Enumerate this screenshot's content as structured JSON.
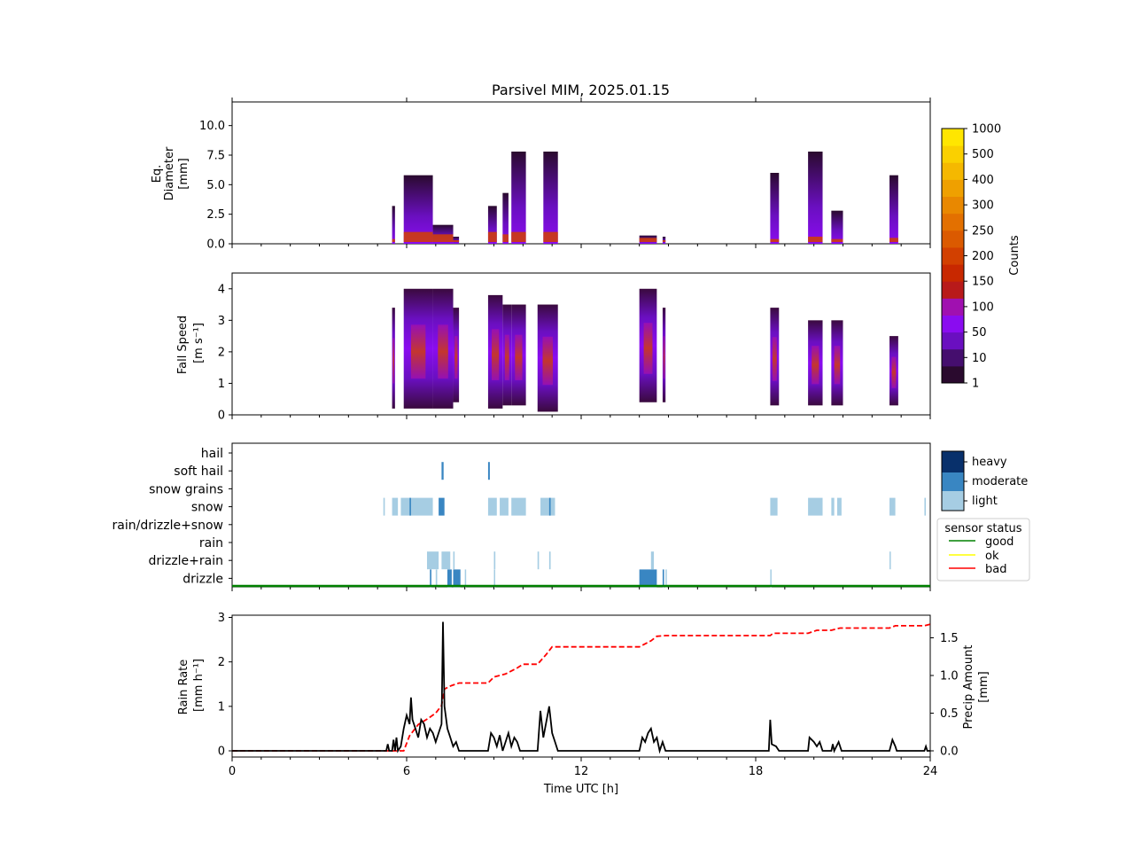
{
  "title": "Parsivel MIM, 2025.01.15",
  "x_axis": {
    "label": "Time UTC [h]",
    "range": [
      0,
      24
    ],
    "ticks": [
      "0",
      "6",
      "12",
      "18",
      "24"
    ]
  },
  "colors": {
    "counts_scale": [
      "#2a0a2e",
      "#450e6e",
      "#6a0fc0",
      "#8a0cf0",
      "#a010b0",
      "#b81a1a",
      "#c82800",
      "#d24000",
      "#db5a00",
      "#e37000",
      "#e98800",
      "#efa000",
      "#f5b800",
      "#fad000",
      "#ffe600"
    ],
    "intensity": {
      "light": "#a6cde3",
      "moderate": "#3986c2",
      "heavy": "#08306b"
    },
    "sensor": {
      "good": "#008000",
      "ok": "#ffff00",
      "bad": "#ff0000"
    },
    "rain_rate": "#000000",
    "precip_amount": "#ff0000"
  },
  "chart_data": [
    {
      "type": "heatmap",
      "panel": "diameter",
      "ylabel": [
        "Eq.",
        "Diameter",
        "[mm]"
      ],
      "ylim": [
        0,
        12
      ],
      "yticks": [
        "0.0",
        "2.5",
        "5.0",
        "7.5",
        "10.0"
      ],
      "events": [
        {
          "t0": 5.5,
          "t1": 5.6,
          "top": 3.2,
          "core": 0.4
        },
        {
          "t0": 5.9,
          "t1": 6.9,
          "top": 5.8,
          "core": 1.0
        },
        {
          "t0": 6.9,
          "t1": 7.6,
          "top": 1.6,
          "core": 0.8
        },
        {
          "t0": 7.6,
          "t1": 7.8,
          "top": 0.6,
          "core": 0.3
        },
        {
          "t0": 8.8,
          "t1": 9.1,
          "top": 3.2,
          "core": 1.0
        },
        {
          "t0": 9.3,
          "t1": 9.5,
          "top": 4.3,
          "core": 0.8
        },
        {
          "t0": 9.6,
          "t1": 10.1,
          "top": 7.8,
          "core": 1.0
        },
        {
          "t0": 10.7,
          "t1": 11.2,
          "top": 7.8,
          "core": 1.0
        },
        {
          "t0": 14.0,
          "t1": 14.6,
          "top": 0.7,
          "core": 0.5
        },
        {
          "t0": 14.8,
          "t1": 14.9,
          "top": 0.6,
          "core": 0.3
        },
        {
          "t0": 18.5,
          "t1": 18.8,
          "top": 6.0,
          "core": 0.4
        },
        {
          "t0": 19.8,
          "t1": 20.3,
          "top": 7.8,
          "core": 0.6
        },
        {
          "t0": 20.6,
          "t1": 21.0,
          "top": 2.8,
          "core": 0.4
        },
        {
          "t0": 22.6,
          "t1": 22.9,
          "top": 5.8,
          "core": 0.5
        }
      ],
      "colorbar": {
        "label": "Counts",
        "ticks": [
          "1",
          "10",
          "50",
          "100",
          "150",
          "200",
          "250",
          "300",
          "400",
          "500",
          "1000"
        ]
      }
    },
    {
      "type": "heatmap",
      "panel": "fall_speed",
      "ylabel": [
        "Fall Speed",
        "[m s⁻¹]"
      ],
      "ylim": [
        0,
        4.5
      ],
      "yticks": [
        "0",
        "1",
        "2",
        "3",
        "4"
      ],
      "events": [
        {
          "t0": 5.5,
          "t1": 5.6,
          "lo": 0.2,
          "hi": 3.4
        },
        {
          "t0": 5.9,
          "t1": 6.9,
          "lo": 0.2,
          "hi": 4.0
        },
        {
          "t0": 6.9,
          "t1": 7.6,
          "lo": 0.2,
          "hi": 4.0
        },
        {
          "t0": 7.6,
          "t1": 7.8,
          "lo": 0.4,
          "hi": 3.4
        },
        {
          "t0": 8.8,
          "t1": 9.3,
          "lo": 0.2,
          "hi": 3.8
        },
        {
          "t0": 9.3,
          "t1": 9.6,
          "lo": 0.3,
          "hi": 3.5
        },
        {
          "t0": 9.6,
          "t1": 10.1,
          "lo": 0.3,
          "hi": 3.5
        },
        {
          "t0": 10.5,
          "t1": 11.2,
          "lo": 0.1,
          "hi": 3.5
        },
        {
          "t0": 14.0,
          "t1": 14.6,
          "lo": 0.4,
          "hi": 4.0
        },
        {
          "t0": 14.8,
          "t1": 14.9,
          "lo": 0.4,
          "hi": 3.4
        },
        {
          "t0": 18.5,
          "t1": 18.8,
          "lo": 0.3,
          "hi": 3.4
        },
        {
          "t0": 19.8,
          "t1": 20.3,
          "lo": 0.3,
          "hi": 3.0
        },
        {
          "t0": 20.6,
          "t1": 21.0,
          "lo": 0.3,
          "hi": 3.0
        },
        {
          "t0": 22.6,
          "t1": 22.9,
          "lo": 0.3,
          "hi": 2.5
        }
      ]
    },
    {
      "type": "heatmap",
      "panel": "precip_type",
      "categories": [
        "hail",
        "soft hail",
        "snow grains",
        "snow",
        "rain/drizzle+snow",
        "rain",
        "drizzle+rain",
        "drizzle"
      ],
      "intensity_legend": [
        "light",
        "moderate",
        "heavy"
      ],
      "sensor_legend": {
        "title": "sensor status",
        "items": [
          "good",
          "ok",
          "bad"
        ]
      },
      "sensor_status": "good",
      "events": [
        {
          "cat": "soft hail",
          "t0": 7.2,
          "t1": 7.27,
          "level": "moderate"
        },
        {
          "cat": "soft hail",
          "t0": 8.8,
          "t1": 8.86,
          "level": "moderate"
        },
        {
          "cat": "snow",
          "t0": 5.2,
          "t1": 5.25,
          "level": "light"
        },
        {
          "cat": "snow",
          "t0": 5.5,
          "t1": 5.7,
          "level": "light"
        },
        {
          "cat": "snow",
          "t0": 5.8,
          "t1": 6.9,
          "level": "light"
        },
        {
          "cat": "snow",
          "t0": 6.1,
          "t1": 6.15,
          "level": "moderate"
        },
        {
          "cat": "snow",
          "t0": 7.1,
          "t1": 7.3,
          "level": "moderate"
        },
        {
          "cat": "snow",
          "t0": 8.8,
          "t1": 9.1,
          "level": "light"
        },
        {
          "cat": "snow",
          "t0": 9.2,
          "t1": 9.5,
          "level": "light"
        },
        {
          "cat": "snow",
          "t0": 9.6,
          "t1": 10.1,
          "level": "light"
        },
        {
          "cat": "snow",
          "t0": 10.6,
          "t1": 11.1,
          "level": "light"
        },
        {
          "cat": "snow",
          "t0": 10.9,
          "t1": 10.95,
          "level": "moderate"
        },
        {
          "cat": "snow",
          "t0": 18.5,
          "t1": 18.75,
          "level": "light"
        },
        {
          "cat": "snow",
          "t0": 19.8,
          "t1": 20.3,
          "level": "light"
        },
        {
          "cat": "snow",
          "t0": 20.6,
          "t1": 20.7,
          "level": "light"
        },
        {
          "cat": "snow",
          "t0": 20.8,
          "t1": 20.95,
          "level": "light"
        },
        {
          "cat": "snow",
          "t0": 22.6,
          "t1": 22.8,
          "level": "light"
        },
        {
          "cat": "snow",
          "t0": 23.8,
          "t1": 23.85,
          "level": "light"
        },
        {
          "cat": "drizzle+rain",
          "t0": 6.7,
          "t1": 7.1,
          "level": "light"
        },
        {
          "cat": "drizzle+rain",
          "t0": 7.2,
          "t1": 7.5,
          "level": "light"
        },
        {
          "cat": "drizzle+rain",
          "t0": 7.6,
          "t1": 7.65,
          "level": "light"
        },
        {
          "cat": "drizzle+rain",
          "t0": 9.0,
          "t1": 9.05,
          "level": "light"
        },
        {
          "cat": "drizzle+rain",
          "t0": 10.5,
          "t1": 10.55,
          "level": "light"
        },
        {
          "cat": "drizzle+rain",
          "t0": 10.9,
          "t1": 10.95,
          "level": "light"
        },
        {
          "cat": "drizzle+rain",
          "t0": 14.4,
          "t1": 14.5,
          "level": "light"
        },
        {
          "cat": "drizzle+rain",
          "t0": 22.6,
          "t1": 22.63,
          "level": "light"
        },
        {
          "cat": "drizzle",
          "t0": 6.8,
          "t1": 6.85,
          "level": "moderate"
        },
        {
          "cat": "drizzle",
          "t0": 7.0,
          "t1": 7.05,
          "level": "light"
        },
        {
          "cat": "drizzle",
          "t0": 7.4,
          "t1": 7.55,
          "level": "moderate"
        },
        {
          "cat": "drizzle",
          "t0": 7.6,
          "t1": 7.85,
          "level": "moderate"
        },
        {
          "cat": "drizzle",
          "t0": 8.0,
          "t1": 8.03,
          "level": "light"
        },
        {
          "cat": "drizzle",
          "t0": 9.0,
          "t1": 9.03,
          "level": "light"
        },
        {
          "cat": "drizzle",
          "t0": 14.0,
          "t1": 14.6,
          "level": "moderate"
        },
        {
          "cat": "drizzle",
          "t0": 14.8,
          "t1": 14.85,
          "level": "moderate"
        },
        {
          "cat": "drizzle",
          "t0": 14.9,
          "t1": 14.93,
          "level": "light"
        },
        {
          "cat": "drizzle",
          "t0": 18.5,
          "t1": 18.53,
          "level": "light"
        }
      ]
    },
    {
      "type": "line",
      "panel": "rain",
      "ylabel": [
        "Rain Rate",
        "[mm h⁻¹]"
      ],
      "y2label": [
        "Precip Amount",
        "[mm]"
      ],
      "ylim": [
        0,
        3.05
      ],
      "y2lim": [
        0,
        1.8
      ],
      "yticks": [
        "0",
        "1",
        "2",
        "3"
      ],
      "y2ticks": [
        "0.0",
        "0.5",
        "1.0",
        "1.5"
      ],
      "series": [
        {
          "name": "rain rate",
          "axis": "left",
          "points": [
            [
              0,
              0
            ],
            [
              5.3,
              0
            ],
            [
              5.35,
              0.15
            ],
            [
              5.4,
              0
            ],
            [
              5.5,
              0
            ],
            [
              5.55,
              0.25
            ],
            [
              5.6,
              0
            ],
            [
              5.65,
              0.3
            ],
            [
              5.7,
              0
            ],
            [
              5.8,
              0.1
            ],
            [
              5.9,
              0.5
            ],
            [
              6.0,
              0.8
            ],
            [
              6.1,
              0.6
            ],
            [
              6.15,
              1.2
            ],
            [
              6.2,
              0.7
            ],
            [
              6.3,
              0.5
            ],
            [
              6.4,
              0.3
            ],
            [
              6.5,
              0.7
            ],
            [
              6.6,
              0.6
            ],
            [
              6.7,
              0.3
            ],
            [
              6.8,
              0.5
            ],
            [
              6.9,
              0.4
            ],
            [
              7.0,
              0.2
            ],
            [
              7.1,
              0.4
            ],
            [
              7.2,
              0.6
            ],
            [
              7.25,
              2.9
            ],
            [
              7.3,
              1.0
            ],
            [
              7.4,
              0.5
            ],
            [
              7.5,
              0.3
            ],
            [
              7.6,
              0.1
            ],
            [
              7.7,
              0.2
            ],
            [
              7.8,
              0
            ],
            [
              8.8,
              0
            ],
            [
              8.9,
              0.4
            ],
            [
              9.0,
              0.3
            ],
            [
              9.1,
              0.1
            ],
            [
              9.2,
              0.35
            ],
            [
              9.3,
              0
            ],
            [
              9.5,
              0.4
            ],
            [
              9.6,
              0.1
            ],
            [
              9.7,
              0.3
            ],
            [
              9.8,
              0.2
            ],
            [
              9.9,
              0
            ],
            [
              10.5,
              0
            ],
            [
              10.6,
              0.9
            ],
            [
              10.7,
              0.3
            ],
            [
              10.9,
              1.0
            ],
            [
              11.0,
              0.4
            ],
            [
              11.1,
              0.2
            ],
            [
              11.2,
              0
            ],
            [
              14.0,
              0
            ],
            [
              14.1,
              0.3
            ],
            [
              14.2,
              0.2
            ],
            [
              14.3,
              0.4
            ],
            [
              14.4,
              0.5
            ],
            [
              14.5,
              0.2
            ],
            [
              14.6,
              0.3
            ],
            [
              14.7,
              0
            ],
            [
              14.8,
              0.2
            ],
            [
              14.9,
              0
            ],
            [
              18.45,
              0
            ],
            [
              18.5,
              0.7
            ],
            [
              18.55,
              0.15
            ],
            [
              18.7,
              0.1
            ],
            [
              18.8,
              0
            ],
            [
              19.8,
              0
            ],
            [
              19.85,
              0.3
            ],
            [
              20.0,
              0.2
            ],
            [
              20.1,
              0.1
            ],
            [
              20.2,
              0.2
            ],
            [
              20.3,
              0
            ],
            [
              20.6,
              0
            ],
            [
              20.65,
              0.15
            ],
            [
              20.7,
              0
            ],
            [
              20.85,
              0.2
            ],
            [
              20.95,
              0
            ],
            [
              22.6,
              0
            ],
            [
              22.7,
              0.25
            ],
            [
              22.8,
              0.1
            ],
            [
              22.85,
              0
            ],
            [
              23.8,
              0
            ],
            [
              23.85,
              0.1
            ],
            [
              23.9,
              0
            ],
            [
              24,
              0
            ]
          ]
        },
        {
          "name": "precip amount",
          "axis": "right",
          "points": [
            [
              0,
              0
            ],
            [
              5.9,
              0
            ],
            [
              6.1,
              0.2
            ],
            [
              6.4,
              0.35
            ],
            [
              6.7,
              0.42
            ],
            [
              7.0,
              0.5
            ],
            [
              7.2,
              0.6
            ],
            [
              7.3,
              0.82
            ],
            [
              7.5,
              0.86
            ],
            [
              7.8,
              0.9
            ],
            [
              8.8,
              0.9
            ],
            [
              9.0,
              0.98
            ],
            [
              9.4,
              1.02
            ],
            [
              9.8,
              1.1
            ],
            [
              10.0,
              1.15
            ],
            [
              10.5,
              1.15
            ],
            [
              10.8,
              1.28
            ],
            [
              11.0,
              1.38
            ],
            [
              14.0,
              1.38
            ],
            [
              14.4,
              1.46
            ],
            [
              14.6,
              1.52
            ],
            [
              14.9,
              1.53
            ],
            [
              18.5,
              1.53
            ],
            [
              18.6,
              1.56
            ],
            [
              19.8,
              1.56
            ],
            [
              20.1,
              1.6
            ],
            [
              20.6,
              1.6
            ],
            [
              20.9,
              1.63
            ],
            [
              22.6,
              1.63
            ],
            [
              22.8,
              1.66
            ],
            [
              23.8,
              1.66
            ],
            [
              24,
              1.68
            ]
          ]
        }
      ]
    }
  ]
}
